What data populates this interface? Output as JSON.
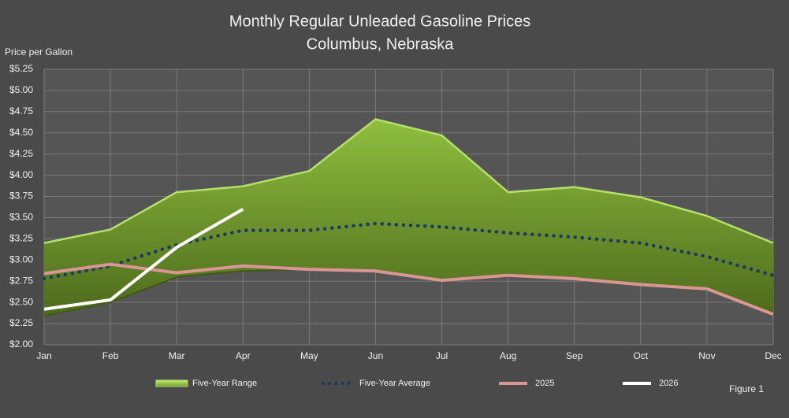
{
  "chart_data": {
    "type": "line",
    "title": "Monthly Regular Unleaded Gasoline Prices",
    "subtitle": "Columbus, Nebraska",
    "y_label": "Price per Gallon",
    "annotation": "Figure 1",
    "categories": [
      "Jan",
      "Feb",
      "Mar",
      "Apr",
      "May",
      "Jun",
      "Jul",
      "Aug",
      "Sep",
      "Oct",
      "Nov",
      "Dec"
    ],
    "ylim": [
      2.0,
      5.25
    ],
    "yticks": [
      {
        "value": 2.0,
        "label": "$2.00"
      },
      {
        "value": 2.25,
        "label": "$2.25"
      },
      {
        "value": 2.5,
        "label": "$2.50"
      },
      {
        "value": 2.75,
        "label": "$2.75"
      },
      {
        "value": 3.0,
        "label": "$3.00"
      },
      {
        "value": 3.25,
        "label": "$3.25"
      },
      {
        "value": 3.5,
        "label": "$3.50"
      },
      {
        "value": 3.75,
        "label": "$3.75"
      },
      {
        "value": 4.0,
        "label": "$4.00"
      },
      {
        "value": 4.25,
        "label": "$4.25"
      },
      {
        "value": 4.5,
        "label": "$4.50"
      },
      {
        "value": 4.75,
        "label": "$4.75"
      },
      {
        "value": 5.0,
        "label": "$5.00"
      },
      {
        "value": 5.25,
        "label": "$5.25"
      }
    ],
    "grid": true,
    "series": [
      {
        "name": "Five-Year Range",
        "style": "range",
        "color": "#b5e06a",
        "low": [
          2.34,
          2.5,
          2.8,
          2.87,
          2.89,
          2.87,
          2.75,
          2.81,
          2.77,
          2.7,
          2.65,
          2.35
        ],
        "high": [
          3.2,
          3.36,
          3.8,
          3.87,
          4.05,
          4.66,
          4.47,
          3.8,
          3.86,
          3.74,
          3.52,
          3.2
        ]
      },
      {
        "name": "Five-Year Average",
        "style": "dotted",
        "color": "#1f3a5f",
        "values": [
          2.78,
          2.93,
          3.18,
          3.35,
          3.35,
          3.43,
          3.39,
          3.32,
          3.27,
          3.2,
          3.04,
          2.82
        ]
      },
      {
        "name": "2025",
        "style": "solid",
        "color": "#d99694",
        "values": [
          2.84,
          2.95,
          2.85,
          2.93,
          2.89,
          2.87,
          2.76,
          2.82,
          2.78,
          2.71,
          2.66,
          2.36
        ]
      },
      {
        "name": "2026",
        "style": "solid",
        "color": "#ffffff",
        "values": [
          2.42,
          2.53,
          3.15,
          3.6,
          null,
          null,
          null,
          null,
          null,
          null,
          null,
          null
        ]
      }
    ]
  }
}
